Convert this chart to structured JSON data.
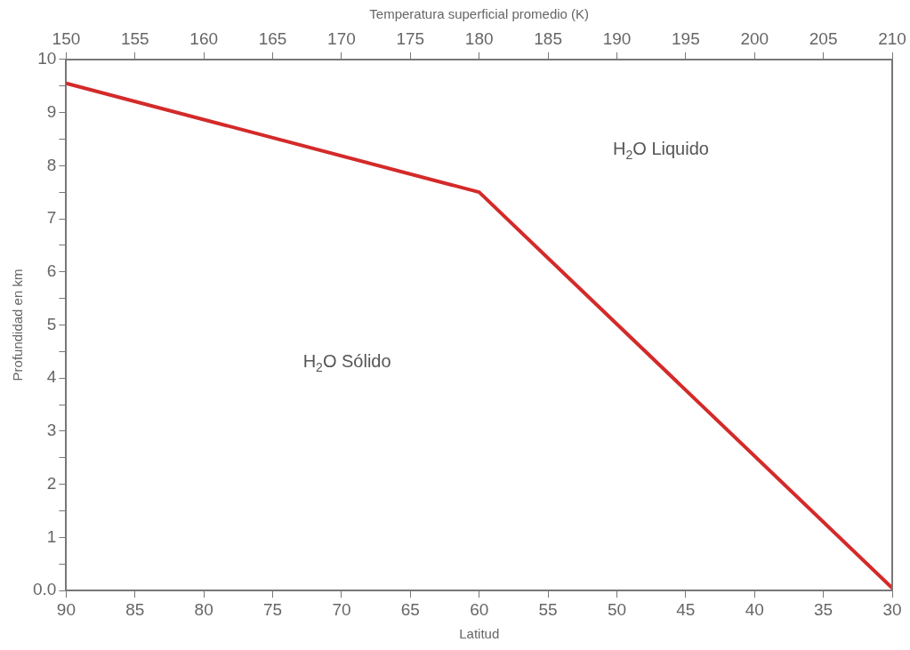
{
  "chart_data": {
    "type": "line",
    "xlabel": "Latitud",
    "x2label": "Temperatura superficial promedio (K)",
    "ylabel": "Profundidad en km",
    "annotations": [
      "H$_{2}$O Liquido",
      "H$_{2}$O Sólido"
    ],
    "series": [
      {
        "color": "#d42a2a",
        "x": [
          90,
          60,
          30
        ],
        "values": [
          9.55,
          7.5,
          0.05
        ]
      }
    ],
    "xlim": [
      90,
      30
    ],
    "xticks": [
      90,
      85,
      80,
      75,
      70,
      65,
      60,
      55,
      50,
      45,
      40,
      35,
      30
    ],
    "x2lim": [
      150,
      210
    ],
    "x2ticks": [
      150,
      155,
      160,
      165,
      170,
      175,
      180,
      185,
      190,
      195,
      200,
      205,
      210
    ],
    "ylim": [
      0,
      10
    ],
    "yticks": [
      {
        "value": 0,
        "label": "0.0"
      },
      {
        "value": 0.5,
        "label": null
      },
      1,
      {
        "value": 1.5,
        "label": null
      },
      2,
      {
        "value": 2.5,
        "label": null
      },
      3,
      {
        "value": 3.5,
        "label": null
      },
      4,
      {
        "value": 4.5,
        "label": null
      },
      5,
      {
        "value": 5.5,
        "label": null
      },
      6,
      {
        "value": 6.5,
        "label": null
      },
      7,
      {
        "value": 7.5,
        "label": null
      },
      8,
      {
        "value": 8.5,
        "label": null
      },
      9,
      {
        "value": 9.5,
        "label": null
      },
      10
    ],
    "grid": false,
    "legend": false,
    "marker": "none",
    "line_style": "solid"
  }
}
